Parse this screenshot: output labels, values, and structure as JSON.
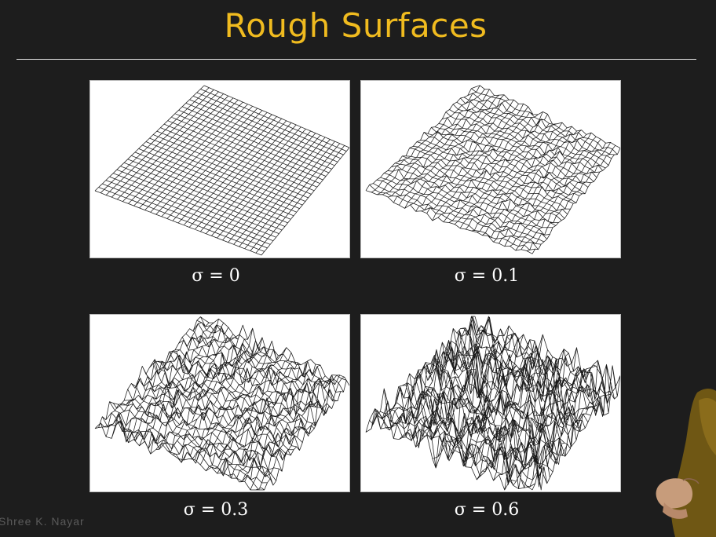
{
  "slide": {
    "title": "Rough Surfaces",
    "watermark": "Shree K. Nayar",
    "title_color": "#f0bb1f"
  },
  "panels": [
    {
      "caption": "σ = 0",
      "sigma": 0
    },
    {
      "caption": "σ = 0.1",
      "sigma": 0.1
    },
    {
      "caption": "σ = 0.3",
      "sigma": 0.3
    },
    {
      "caption": "σ = 0.6",
      "sigma": 0.6
    }
  ]
}
